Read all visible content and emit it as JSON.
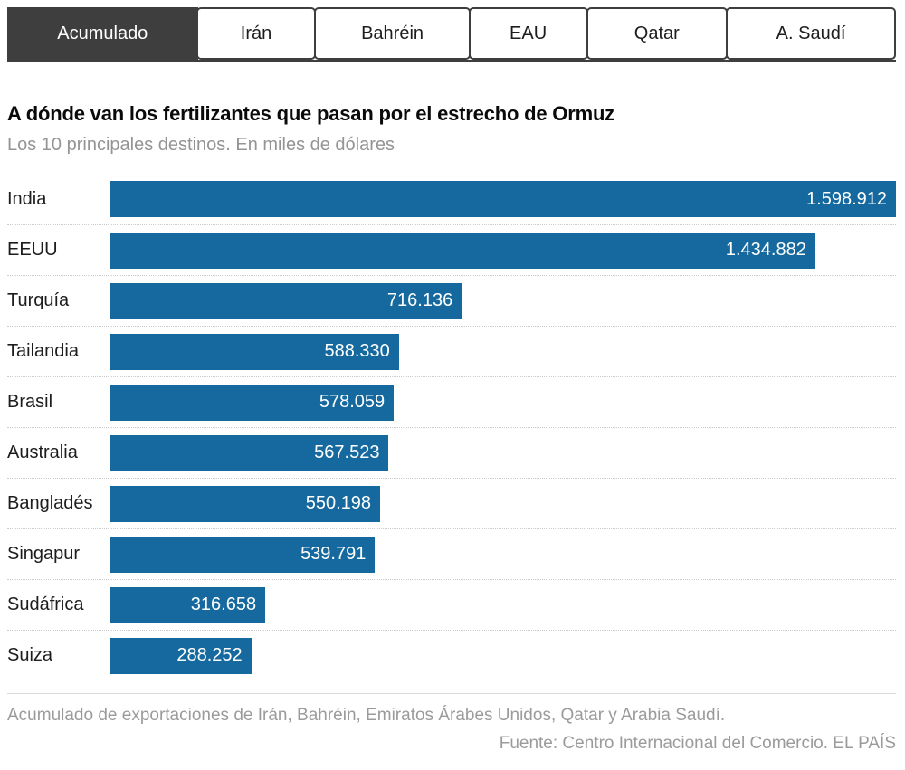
{
  "tabs": {
    "items": [
      {
        "label": "Acumulado",
        "active": true
      },
      {
        "label": "Irán",
        "active": false
      },
      {
        "label": "Bahréin",
        "active": false
      },
      {
        "label": "EAU",
        "active": false
      },
      {
        "label": "Qatar",
        "active": false
      },
      {
        "label": "A. Saudí",
        "active": false
      }
    ]
  },
  "chart_data": {
    "type": "bar",
    "orientation": "horizontal",
    "title": "A dónde van los fertilizantes que pasan por el estrecho de Ormuz",
    "subtitle": "Los 10 principales destinos. En miles de dólares",
    "unit": "miles de dólares",
    "categories": [
      "India",
      "EEUU",
      "Turquía",
      "Tailandia",
      "Brasil",
      "Australia",
      "Bangladés",
      "Singapur",
      "Sudáfrica",
      "Suiza"
    ],
    "values": [
      1598912,
      1434882,
      716136,
      588330,
      578059,
      567523,
      550198,
      539791,
      316658,
      288252
    ],
    "value_labels": [
      "1.598.912",
      "1.434.882",
      "716.136",
      "588.330",
      "578.059",
      "567.523",
      "550.198",
      "539.791",
      "316.658",
      "288.252"
    ],
    "xlim": [
      0,
      1598912
    ],
    "bar_color": "#15699e",
    "grid": false,
    "legend": false
  },
  "footer": {
    "note": "Acumulado de exportaciones de Irán, Bahréin, Emiratos Árabes Unidos, Qatar y Arabia Saudí.",
    "source": "Fuente: Centro Internacional del Comercio. EL PAÍS"
  }
}
